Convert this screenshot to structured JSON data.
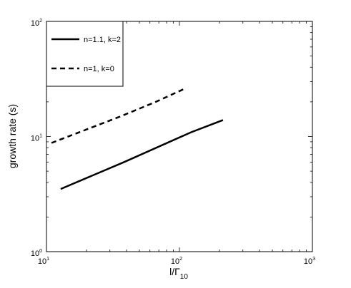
{
  "chart_data": {
    "type": "line",
    "x_scale": "log",
    "y_scale": "log",
    "xlim": [
      10,
      1000
    ],
    "ylim": [
      1,
      100
    ],
    "xlabel": {
      "main": "l/Γ",
      "sub": "10"
    },
    "ylabel": "growth rate (s)",
    "x_ticks": [
      {
        "value": 10,
        "base": "10",
        "exp": "1"
      },
      {
        "value": 100,
        "base": "10",
        "exp": "2"
      },
      {
        "value": 1000,
        "base": "10",
        "exp": "3"
      }
    ],
    "y_ticks": [
      {
        "value": 1,
        "base": "10",
        "exp": "0"
      },
      {
        "value": 10,
        "base": "10",
        "exp": "1"
      },
      {
        "value": 100,
        "base": "10",
        "exp": "2"
      }
    ],
    "legend_position": "top-left",
    "grid": false,
    "series": [
      {
        "name": "n=1.1, k=2",
        "style": "solid",
        "color": "#000000",
        "points": [
          [
            12.8,
            3.5
          ],
          [
            38.4,
            6.0
          ],
          [
            122.5,
            10.9
          ],
          [
            212.4,
            13.9
          ]
        ]
      },
      {
        "name": "n=1, k=0",
        "style": "dashed",
        "color": "#000000",
        "points": [
          [
            10.9,
            8.8
          ],
          [
            35.8,
            14.9
          ],
          [
            66.4,
            20.0
          ],
          [
            109.3,
            26.0
          ]
        ]
      }
    ]
  }
}
